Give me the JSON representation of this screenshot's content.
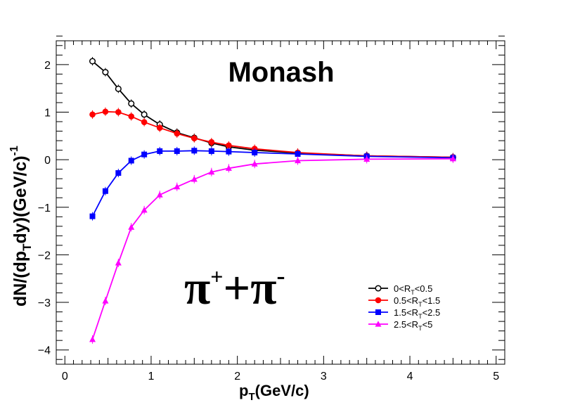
{
  "chart_data": {
    "type": "line",
    "title": "Monash",
    "particle_label": {
      "base1": "π",
      "sup1": "+",
      "plus": "+",
      "base2": "π",
      "sup2": "-"
    },
    "xlabel": {
      "main": "p",
      "sub": "T",
      "rest": "(GeV/c)"
    },
    "ylabel": {
      "p1": "dN/(dp",
      "sub": "T",
      "p2": "dy)(GeV/c)",
      "sup": "-1"
    },
    "xlim": [
      -0.1,
      5.1
    ],
    "ylim": [
      -4.3,
      2.5
    ],
    "x_ticks": [
      0,
      1,
      2,
      3,
      4,
      5
    ],
    "y_ticks": [
      -4,
      -3,
      -2,
      -1,
      0,
      1,
      2
    ],
    "x_tick_labels": [
      "0",
      "1",
      "2",
      "3",
      "4",
      "5"
    ],
    "y_tick_labels": [
      "−4",
      "−3",
      "−2",
      "−1",
      "0",
      "1",
      "2"
    ],
    "grid": false,
    "legend_position": "bottom-right",
    "series": [
      {
        "legend": {
          "pre": "0<R",
          "sub": "T",
          "post": "<0.5"
        },
        "color": "#000000",
        "marker": "open-circle",
        "x": [
          0.32,
          0.47,
          0.62,
          0.77,
          0.92,
          1.1,
          1.3,
          1.5,
          1.7,
          1.9,
          2.2,
          2.7,
          3.5,
          4.5
        ],
        "y": [
          2.07,
          1.84,
          1.49,
          1.18,
          0.95,
          0.74,
          0.57,
          0.46,
          0.35,
          0.27,
          0.2,
          0.14,
          0.08,
          0.05
        ]
      },
      {
        "legend": {
          "pre": "0.5<R",
          "sub": "T",
          "post": "<1.5"
        },
        "color": "#ff0000",
        "marker": "filled-circle",
        "x": [
          0.32,
          0.47,
          0.62,
          0.77,
          0.92,
          1.1,
          1.3,
          1.5,
          1.7,
          1.9,
          2.2,
          2.7,
          3.5,
          4.5
        ],
        "y": [
          0.95,
          1.01,
          1.0,
          0.91,
          0.79,
          0.67,
          0.55,
          0.45,
          0.37,
          0.3,
          0.23,
          0.15,
          0.08,
          0.05
        ]
      },
      {
        "legend": {
          "pre": "1.5<R",
          "sub": "T",
          "post": "<2.5"
        },
        "color": "#0000ff",
        "marker": "filled-square",
        "x": [
          0.32,
          0.47,
          0.62,
          0.77,
          0.92,
          1.1,
          1.3,
          1.5,
          1.7,
          1.9,
          2.2,
          2.7,
          3.5,
          4.5
        ],
        "y": [
          -1.19,
          -0.66,
          -0.28,
          -0.02,
          0.11,
          0.18,
          0.18,
          0.19,
          0.18,
          0.17,
          0.15,
          0.12,
          0.07,
          0.04
        ]
      },
      {
        "legend": {
          "pre": "2.5<R",
          "sub": "T",
          "post": "<5"
        },
        "color": "#ff00ff",
        "marker": "filled-triangle",
        "x": [
          0.32,
          0.47,
          0.62,
          0.77,
          0.92,
          1.1,
          1.3,
          1.5,
          1.7,
          1.9,
          2.2,
          2.7,
          3.5,
          4.5
        ],
        "y": [
          -3.78,
          -2.97,
          -2.17,
          -1.42,
          -1.06,
          -0.74,
          -0.57,
          -0.41,
          -0.26,
          -0.18,
          -0.09,
          -0.02,
          0.01,
          0.02
        ]
      }
    ]
  }
}
